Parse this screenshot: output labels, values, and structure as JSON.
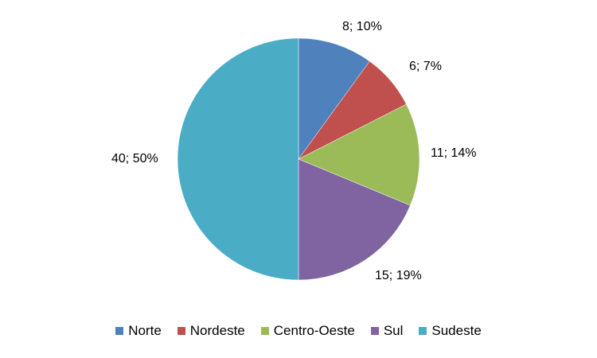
{
  "chart_data": {
    "type": "pie",
    "title": "",
    "categories": [
      "Norte",
      "Nordeste",
      "Centro-Oeste",
      "Sul",
      "Sudeste"
    ],
    "values": [
      8,
      6,
      11,
      15,
      40
    ],
    "percentages": [
      "10%",
      "7%",
      "14%",
      "19%",
      "50%"
    ],
    "data_labels": [
      "8; 10%",
      "6; 7%",
      "11; 14%",
      "15; 19%",
      "40; 50%"
    ],
    "colors": [
      "#4F81BD",
      "#C0504D",
      "#9BBB59",
      "#8064A2",
      "#4BACC6"
    ],
    "legend_position": "bottom",
    "start_angle": "12 o'clock",
    "direction": "clockwise"
  },
  "labels": {
    "norte": "8; 10%",
    "nordeste": "6; 7%",
    "centro_oeste": "11; 14%",
    "sul": "15; 19%",
    "sudeste": "40; 50%"
  },
  "legend": [
    {
      "label": "Norte",
      "color": "#4F81BD"
    },
    {
      "label": "Nordeste",
      "color": "#C0504D"
    },
    {
      "label": "Centro-Oeste",
      "color": "#9BBB59"
    },
    {
      "label": "Sul",
      "color": "#8064A2"
    },
    {
      "label": "Sudeste",
      "color": "#4BACC6"
    }
  ]
}
